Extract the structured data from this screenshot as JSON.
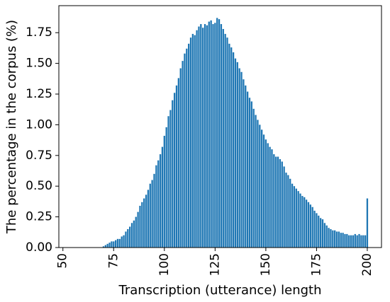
{
  "chart_data": {
    "type": "bar",
    "title": "",
    "xlabel": "Transcription (utterance) length",
    "ylabel": "The percentage in the corpus (%)",
    "xlim": [
      48,
      207
    ],
    "ylim": [
      0,
      1.97
    ],
    "xticks": [
      50,
      75,
      100,
      125,
      150,
      175,
      200
    ],
    "xtick_labels": [
      "50",
      "75",
      "100",
      "125",
      "150",
      "175",
      "200"
    ],
    "yticks": [
      0.0,
      0.25,
      0.5,
      0.75,
      1.0,
      1.25,
      1.5,
      1.75
    ],
    "ytick_labels": [
      "0.00",
      "0.25",
      "0.50",
      "0.75",
      "1.00",
      "1.25",
      "1.50",
      "1.75"
    ],
    "grid": false,
    "bar_color": "#1f77b4",
    "x": [
      70,
      71,
      72,
      73,
      74,
      75,
      76,
      77,
      78,
      79,
      80,
      81,
      82,
      83,
      84,
      85,
      86,
      87,
      88,
      89,
      90,
      91,
      92,
      93,
      94,
      95,
      96,
      97,
      98,
      99,
      100,
      101,
      102,
      103,
      104,
      105,
      106,
      107,
      108,
      109,
      110,
      111,
      112,
      113,
      114,
      115,
      116,
      117,
      118,
      119,
      120,
      121,
      122,
      123,
      124,
      125,
      126,
      127,
      128,
      129,
      130,
      131,
      132,
      133,
      134,
      135,
      136,
      137,
      138,
      139,
      140,
      141,
      142,
      143,
      144,
      145,
      146,
      147,
      148,
      149,
      150,
      151,
      152,
      153,
      154,
      155,
      156,
      157,
      158,
      159,
      160,
      161,
      162,
      163,
      164,
      165,
      166,
      167,
      168,
      169,
      170,
      171,
      172,
      173,
      174,
      175,
      176,
      177,
      178,
      179,
      180,
      181,
      182,
      183,
      184,
      185,
      186,
      187,
      188,
      189,
      190,
      191,
      192,
      193,
      194,
      195,
      196,
      197,
      198,
      199,
      200
    ],
    "values": [
      0.01,
      0.02,
      0.03,
      0.04,
      0.05,
      0.05,
      0.06,
      0.07,
      0.07,
      0.09,
      0.1,
      0.13,
      0.15,
      0.17,
      0.2,
      0.22,
      0.25,
      0.29,
      0.34,
      0.37,
      0.4,
      0.43,
      0.47,
      0.52,
      0.55,
      0.6,
      0.67,
      0.71,
      0.76,
      0.82,
      0.91,
      0.98,
      1.07,
      1.12,
      1.2,
      1.26,
      1.32,
      1.38,
      1.46,
      1.52,
      1.58,
      1.62,
      1.66,
      1.71,
      1.74,
      1.73,
      1.77,
      1.8,
      1.82,
      1.79,
      1.82,
      1.81,
      1.84,
      1.85,
      1.82,
      1.83,
      1.87,
      1.86,
      1.82,
      1.78,
      1.74,
      1.71,
      1.66,
      1.63,
      1.59,
      1.54,
      1.51,
      1.46,
      1.43,
      1.37,
      1.32,
      1.27,
      1.22,
      1.19,
      1.13,
      1.08,
      1.04,
      1.0,
      0.96,
      0.92,
      0.88,
      0.85,
      0.82,
      0.8,
      0.76,
      0.74,
      0.74,
      0.72,
      0.7,
      0.66,
      0.61,
      0.59,
      0.56,
      0.52,
      0.5,
      0.48,
      0.46,
      0.44,
      0.42,
      0.41,
      0.39,
      0.37,
      0.35,
      0.33,
      0.3,
      0.28,
      0.26,
      0.24,
      0.23,
      0.2,
      0.18,
      0.16,
      0.15,
      0.14,
      0.14,
      0.13,
      0.13,
      0.12,
      0.12,
      0.11,
      0.11,
      0.1,
      0.1,
      0.1,
      0.11,
      0.1,
      0.11,
      0.1,
      0.1,
      0.1,
      0.4
    ]
  }
}
